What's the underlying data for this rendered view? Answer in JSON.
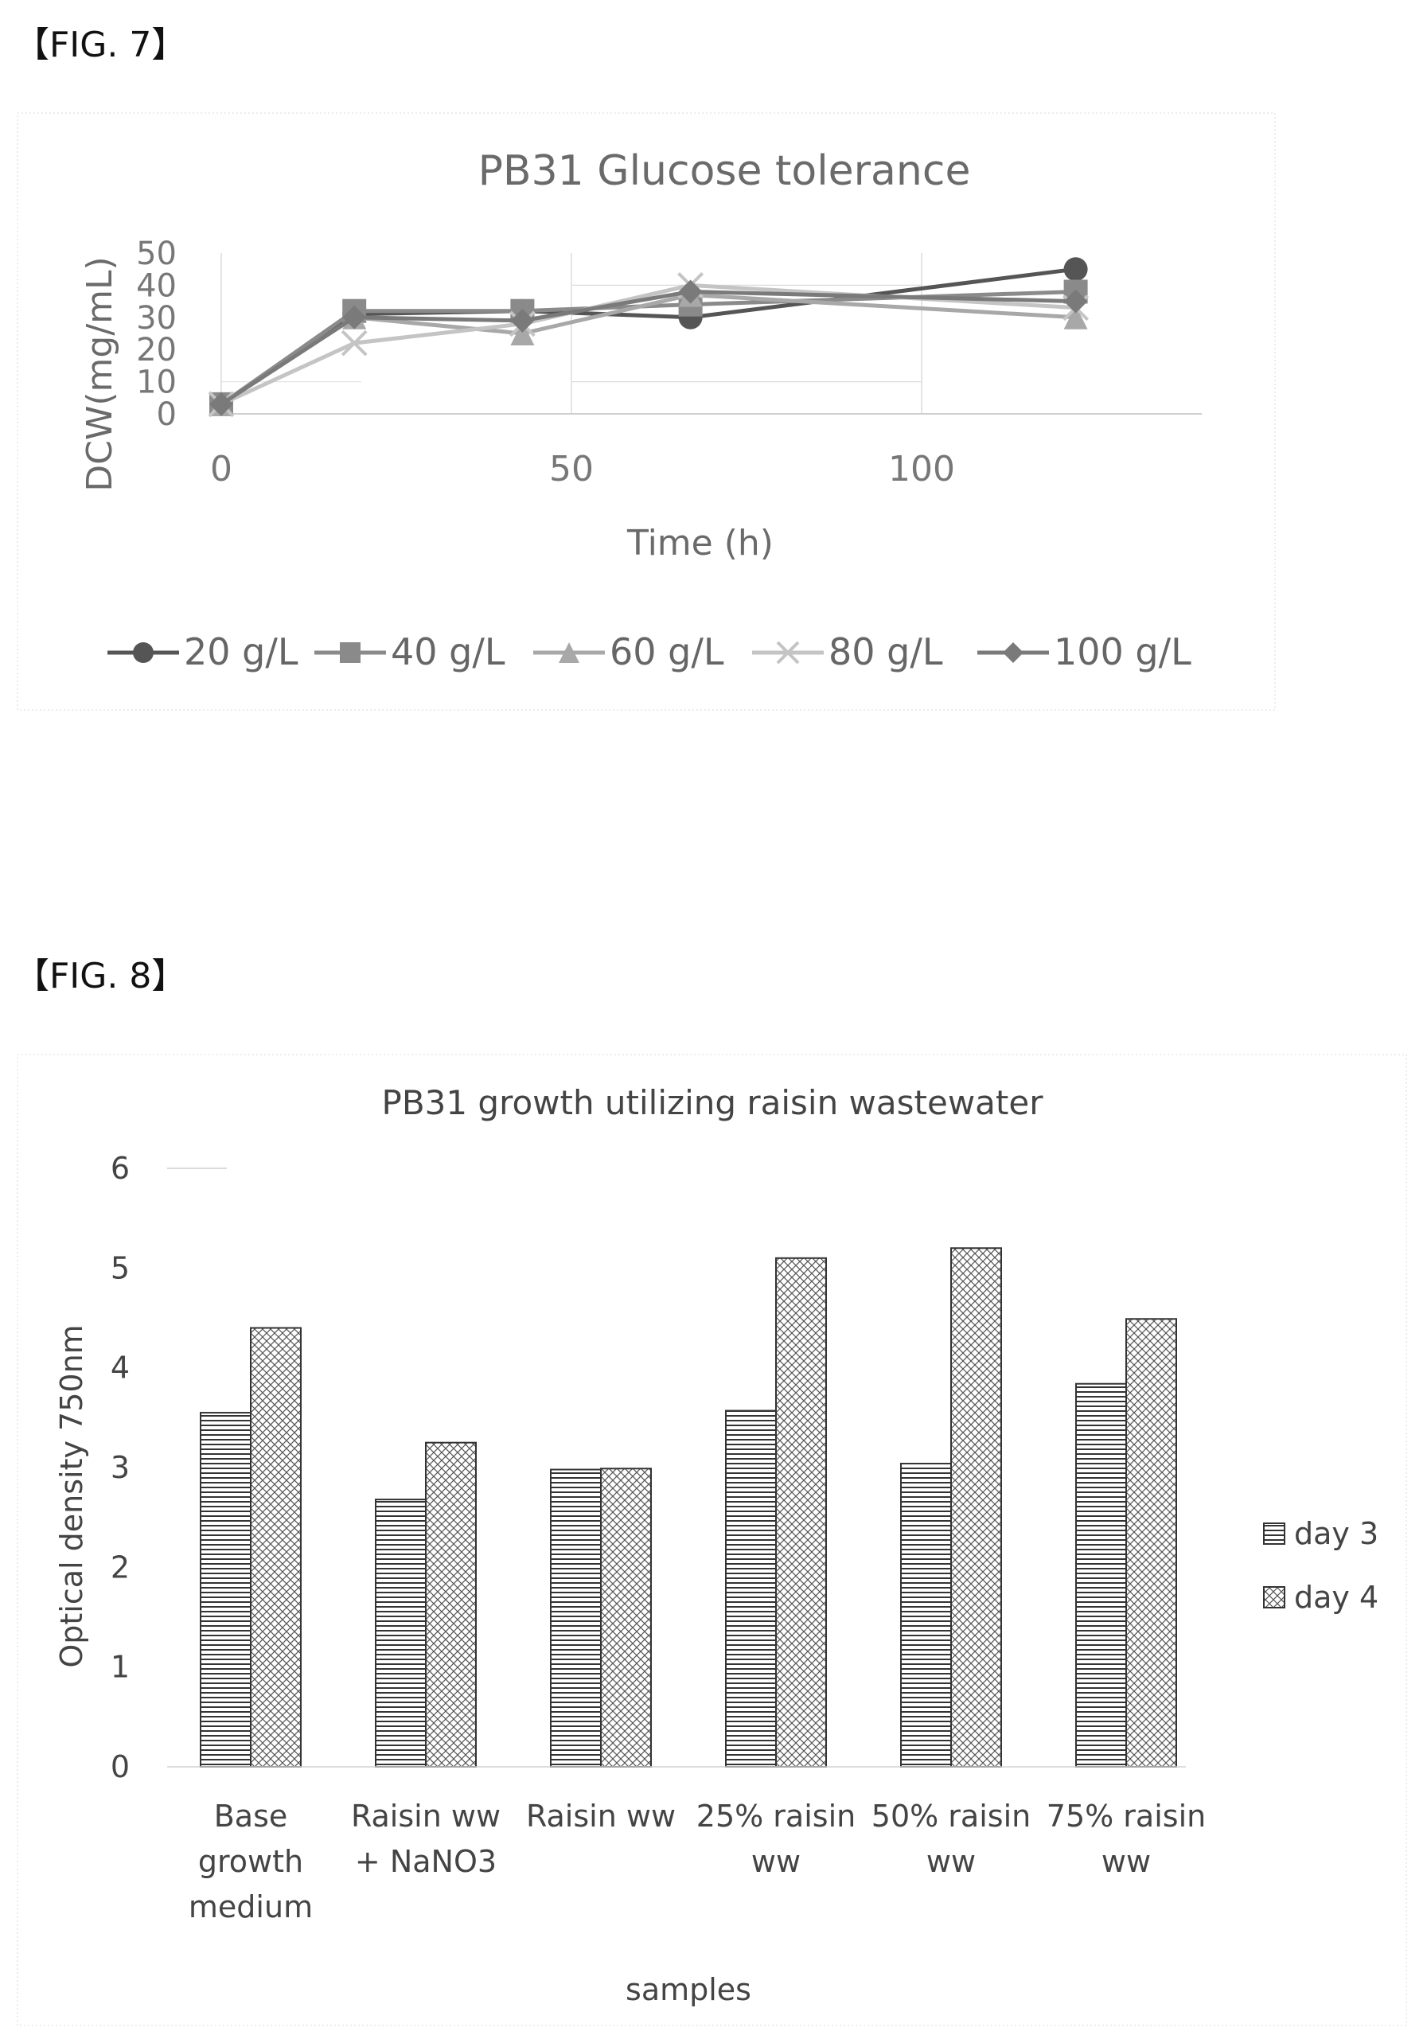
{
  "figures": {
    "fig7_label": "【FIG. 7】",
    "fig8_label": "【FIG. 8】"
  },
  "chart_data": [
    {
      "type": "line",
      "title": "PB31 Glucose tolerance",
      "xlabel": "Time (h)",
      "ylabel": "DCW(mg/mL)",
      "xlim": [
        0,
        140
      ],
      "ylim": [
        0,
        50
      ],
      "x_ticks": [
        "0",
        "50",
        "100"
      ],
      "y_ticks": [
        "0",
        "10",
        "20",
        "30",
        "40",
        "50"
      ],
      "legend_position": "bottom",
      "grid": true,
      "series": [
        {
          "name": "20 g/L",
          "marker": "circle",
          "color": "#555555",
          "x": [
            0,
            19,
            43,
            67,
            122
          ],
          "y": [
            3,
            31,
            32,
            30,
            45
          ]
        },
        {
          "name": "40 g/L",
          "marker": "square",
          "color": "#8a8a8a",
          "x": [
            0,
            19,
            43,
            67,
            122
          ],
          "y": [
            3,
            32,
            32,
            34,
            38
          ]
        },
        {
          "name": "60 g/L",
          "marker": "triangle",
          "color": "#a8a8a8",
          "x": [
            0,
            19,
            43,
            67,
            122
          ],
          "y": [
            3,
            30,
            25,
            37,
            30
          ]
        },
        {
          "name": "80 g/L",
          "marker": "x",
          "color": "#c4c4c4",
          "x": [
            0,
            19,
            43,
            67,
            122
          ],
          "y": [
            3,
            22,
            28,
            40,
            33
          ]
        },
        {
          "name": "100 g/L",
          "marker": "diamond",
          "color": "#7a7a7a",
          "x": [
            0,
            19,
            43,
            67,
            122
          ],
          "y": [
            3,
            30,
            29,
            38,
            35
          ]
        }
      ]
    },
    {
      "type": "bar",
      "title": "PB31 growth utilizing raisin wastewater",
      "xlabel": "samples",
      "ylabel": "Optical density 750nm",
      "ylim": [
        0,
        6
      ],
      "y_ticks": [
        "0",
        "1",
        "2",
        "3",
        "4",
        "5",
        "6"
      ],
      "legend_position": "right",
      "categories": [
        [
          "Base",
          "growth",
          "medium"
        ],
        [
          "Raisin ww",
          "+ NaNO3"
        ],
        [
          "Raisin ww"
        ],
        [
          "25% raisin",
          "ww"
        ],
        [
          "50% raisin",
          "ww"
        ],
        [
          "75% raisin",
          "ww"
        ]
      ],
      "series": [
        {
          "name": "day 3",
          "pattern": "horizontal-stripes",
          "values": [
            3.55,
            2.68,
            2.98,
            3.57,
            3.04,
            3.84
          ]
        },
        {
          "name": "day 4",
          "pattern": "crosshatch",
          "values": [
            4.4,
            3.25,
            2.99,
            5.1,
            5.2,
            4.49
          ]
        }
      ]
    }
  ]
}
